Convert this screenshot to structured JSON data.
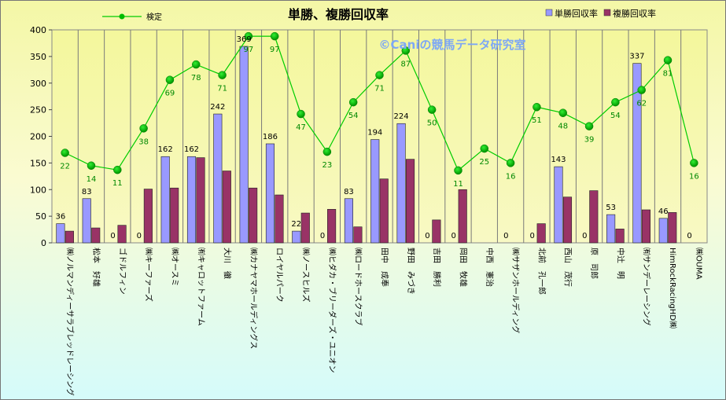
{
  "chart_data": {
    "type": "bar",
    "title": "単勝、複勝回収率",
    "watermark": "©Caniの競馬データ研究室",
    "ylim": [
      0,
      400
    ],
    "yticks": [
      0,
      50,
      100,
      150,
      200,
      250,
      300,
      350,
      400
    ],
    "grid": true,
    "legend_placement": "top",
    "categories": [
      "㈱ノルマンディーサラブレッドレーシング",
      "松本　好雄",
      "ゴドルフィン",
      "㈱キーファーズ",
      "㈱オースミ",
      "㈲キャロットファーム",
      "大川　徹",
      "㈱カナヤマホールディングス",
      "ロイヤルパーク",
      "㈱ノースヒルズ",
      "㈱ヒダカ・ブリーダーズ・ユニオン",
      "㈱ロードホースクラブ",
      "田中　成奉",
      "野田　みづき",
      "吉田　勝利",
      "岡田　牧雄",
      "中西　憲治",
      "㈱サザンホールディング",
      "北前　孔一郎",
      "西山　茂行",
      "原　司郎",
      "中辻　明",
      "㈲サンデーレーシング",
      "HimRockRacingHD㈱",
      "㈱OUMA"
    ],
    "series": [
      {
        "name": "単勝回収率",
        "kind": "bar",
        "color": "#9999FF",
        "values": [
          36,
          83,
          0,
          0,
          162,
          162,
          242,
          369,
          186,
          22,
          0,
          83,
          194,
          224,
          0,
          0,
          0,
          0,
          0,
          143,
          0,
          53,
          337,
          46,
          0
        ],
        "labels": [
          "36",
          "83",
          "0",
          "0",
          "162",
          "162",
          "242",
          "369",
          "186",
          "22",
          "0",
          "83",
          "194",
          "224",
          "0",
          "0",
          "",
          "0",
          "0",
          "143",
          "0",
          "53",
          "337",
          "46",
          "0"
        ]
      },
      {
        "name": "複勝回収率",
        "kind": "bar",
        "color": "#993366",
        "values": [
          22,
          28,
          33,
          101,
          103,
          160,
          135,
          103,
          90,
          56,
          63,
          30,
          120,
          157,
          43,
          100,
          0,
          0,
          36,
          86,
          98,
          26,
          62,
          57,
          0
        ]
      },
      {
        "name": "検定",
        "kind": "line",
        "color": "#00CC00",
        "values": [
          169,
          145,
          137,
          215,
          306,
          335,
          315,
          388,
          388,
          242,
          171,
          264,
          315,
          361,
          250,
          136,
          177,
          150,
          255,
          244,
          219,
          264,
          287,
          343,
          150
        ],
        "labels": [
          "22",
          "14",
          "11",
          "38",
          "69",
          "78",
          "71",
          "97",
          "97",
          "47",
          "23",
          "54",
          "71",
          "87",
          "50",
          "11",
          "25",
          "16",
          "51",
          "48",
          "39",
          "54",
          "62",
          "81",
          "16"
        ]
      }
    ]
  }
}
